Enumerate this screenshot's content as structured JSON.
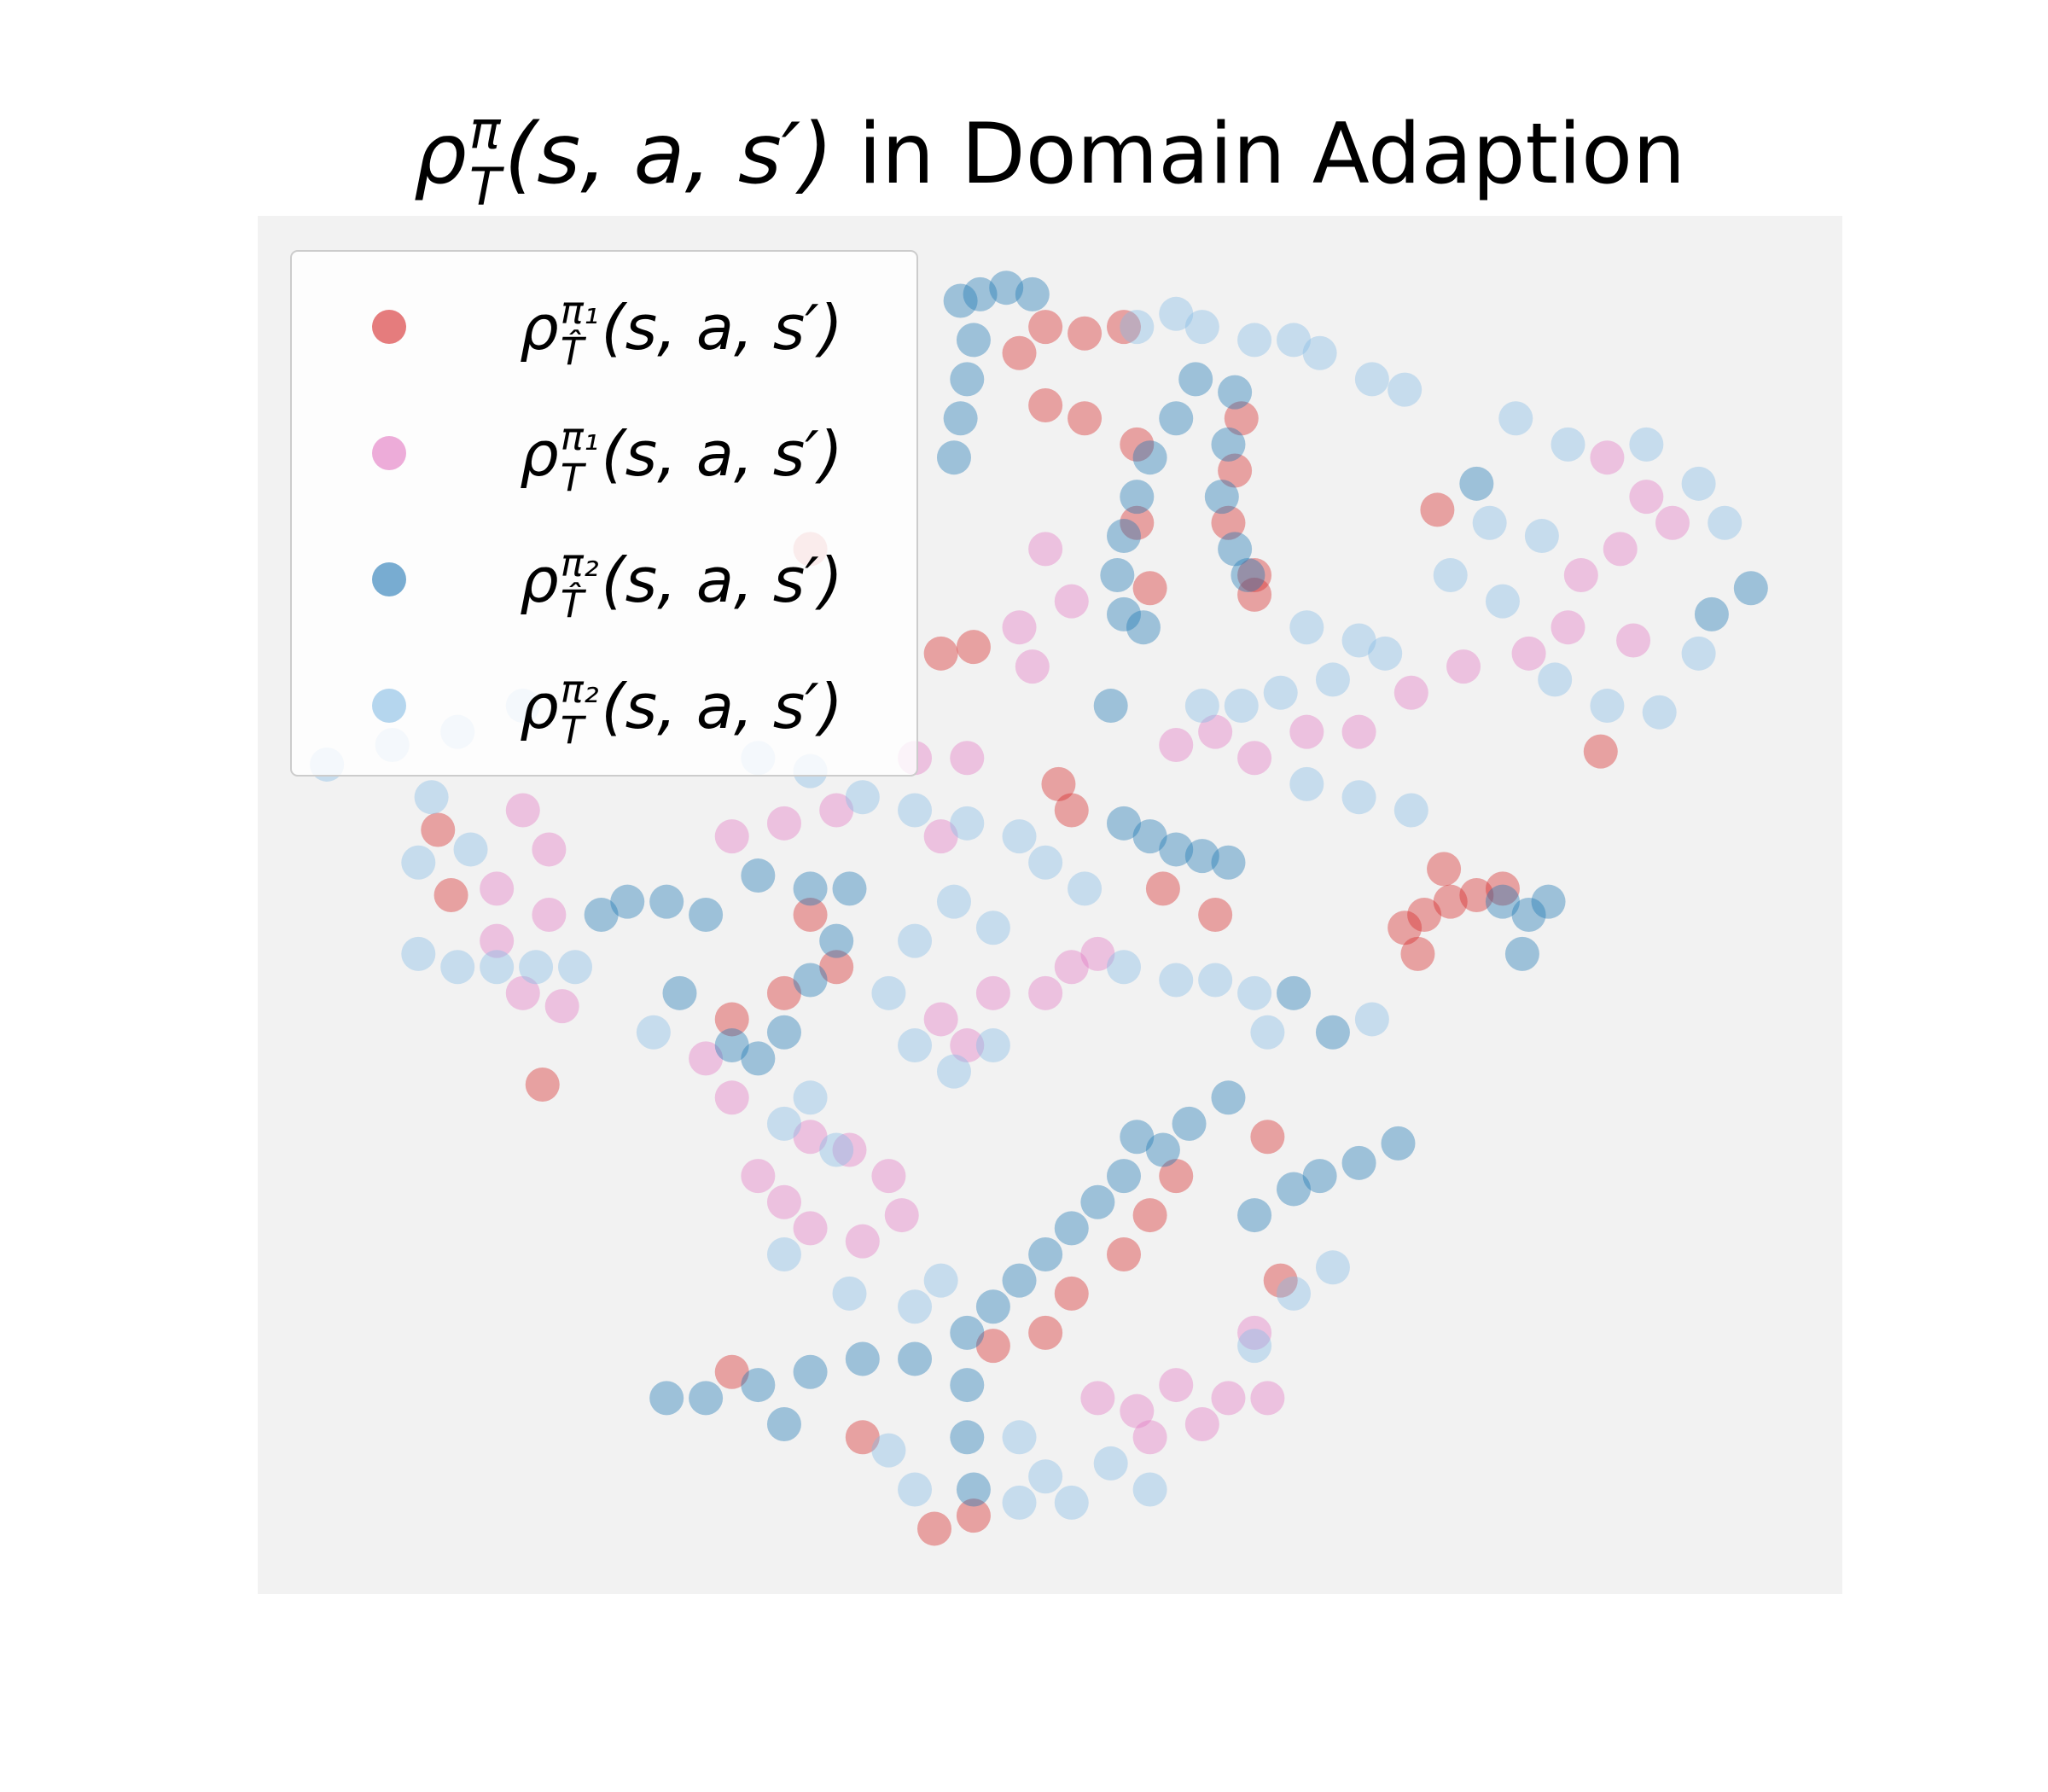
{
  "chart_data": {
    "type": "scatter",
    "title": {
      "symbol": "ρ",
      "sup": "π",
      "sub": "T",
      "args": "(s, a, s′)",
      "text": "in Domain Adaption"
    },
    "xlim": [
      -3,
      1210
    ],
    "ylim": [
      0,
      1055
    ],
    "legend": "upper left",
    "series": [
      {
        "name": {
          "symbol": "ρ",
          "sup": "π₁",
          "sub": "T̂",
          "args": "(s, a, s′)"
        },
        "color": "#d62728",
        "x": [
          600,
          630,
          660,
          580,
          600,
          630,
          670,
          670,
          680,
          750,
          745,
          740,
          760,
          760,
          610,
          620,
          520,
          545,
          420,
          875,
          890,
          910,
          930,
          950,
          885,
          905,
          215,
          135,
          145,
          690,
          730,
          900,
          1025,
          700,
          680,
          660,
          620,
          600,
          560,
          545,
          515,
          460,
          360,
          770,
          780,
          420,
          400,
          360,
          440
        ],
        "values": [
          970,
          965,
          970,
          950,
          910,
          900,
          880,
          820,
          770,
          900,
          860,
          820,
          780,
          765,
          620,
          600,
          720,
          725,
          800,
          510,
          520,
          530,
          535,
          540,
          490,
          555,
          390,
          585,
          535,
          540,
          520,
          830,
          645,
          320,
          290,
          260,
          230,
          200,
          190,
          60,
          50,
          120,
          170,
          350,
          240,
          520,
          460,
          440,
          480
        ]
      },
      {
        "name": {
          "symbol": "ρ",
          "sup": "π₁",
          "sub": "T",
          "args": "(s, a, s′)"
        },
        "color": "#e377c2",
        "x": [
          1030,
          1060,
          1040,
          1010,
          1080,
          1000,
          1050,
          970,
          920,
          880,
          840,
          800,
          760,
          730,
          700,
          600,
          620,
          580,
          590,
          500,
          540,
          440,
          400,
          360,
          520,
          200,
          220,
          180,
          220,
          180,
          200,
          230,
          620,
          640,
          600,
          560,
          520,
          540,
          420,
          450,
          480,
          490,
          460,
          420,
          400,
          380,
          360,
          340,
          640,
          670,
          700,
          740,
          770,
          680,
          720,
          760
        ],
        "values": [
          870,
          840,
          800,
          780,
          820,
          740,
          730,
          720,
          710,
          690,
          660,
          660,
          640,
          660,
          650,
          800,
          760,
          740,
          710,
          640,
          640,
          600,
          590,
          580,
          580,
          600,
          570,
          540,
          520,
          500,
          460,
          450,
          480,
          490,
          460,
          460,
          440,
          420,
          350,
          340,
          320,
          290,
          270,
          280,
          300,
          320,
          380,
          410,
          150,
          140,
          160,
          150,
          150,
          120,
          130,
          200
        ]
      },
      {
        "name": {
          "symbol": "ρ",
          "sup": "π₂",
          "sub": "T̂",
          "args": "(s, a, s′)"
        },
        "color": "#1f77b4",
        "x": [
          535,
          545,
          540,
          535,
          530,
          550,
          570,
          590,
          715,
          700,
          680,
          670,
          660,
          655,
          660,
          675,
          745,
          740,
          735,
          745,
          755,
          650,
          660,
          680,
          700,
          720,
          740,
          950,
          970,
          985,
          965,
          280,
          310,
          340,
          380,
          420,
          450,
          440,
          420,
          400,
          380,
          360,
          320,
          260,
          670,
          690,
          660,
          640,
          620,
          600,
          580,
          560,
          540,
          540,
          540,
          545,
          500,
          460,
          420,
          380,
          340,
          310,
          400,
          710,
          740,
          870,
          840,
          810,
          790,
          760,
          930,
          1140,
          1110,
          790,
          820
        ],
        "values": [
          990,
          960,
          930,
          900,
          870,
          995,
          1000,
          995,
          930,
          900,
          870,
          840,
          810,
          780,
          750,
          740,
          920,
          880,
          840,
          800,
          780,
          680,
          590,
          580,
          570,
          565,
          560,
          530,
          520,
          530,
          490,
          530,
          530,
          520,
          550,
          540,
          540,
          500,
          470,
          430,
          410,
          420,
          460,
          520,
          350,
          340,
          320,
          300,
          280,
          260,
          240,
          220,
          200,
          160,
          120,
          80,
          180,
          180,
          170,
          160,
          150,
          150,
          130,
          360,
          380,
          345,
          330,
          320,
          310,
          290,
          850,
          770,
          750,
          460,
          430
        ]
      },
      {
        "name": {
          "symbol": "ρ",
          "sup": "π₂",
          "sub": "T",
          "args": "(s, a, s′)"
        },
        "color": "#85bce5",
        "x": [
          790,
          810,
          850,
          875,
          720,
          760,
          670,
          700,
          960,
          1000,
          1060,
          1100,
          1120,
          980,
          940,
          910,
          950,
          990,
          1030,
          1070,
          1100,
          860,
          820,
          780,
          750,
          720,
          800,
          840,
          880,
          800,
          840,
          50,
          100,
          150,
          200,
          130,
          160,
          120,
          120,
          150,
          180,
          210,
          240,
          300,
          380,
          420,
          460,
          500,
          540,
          580,
          600,
          630,
          530,
          560,
          500,
          480,
          500,
          530,
          560,
          660,
          700,
          730,
          760,
          770,
          850,
          400,
          420,
          440,
          400,
          450,
          500,
          520,
          820,
          790,
          760,
          580,
          600,
          620,
          580,
          650,
          680,
          480,
          500
        ],
        "values": [
          960,
          950,
          930,
          922,
          970,
          960,
          970,
          980,
          900,
          880,
          880,
          850,
          820,
          810,
          820,
          780,
          760,
          700,
          680,
          675,
          720,
          720,
          700,
          690,
          680,
          680,
          620,
          610,
          600,
          740,
          730,
          635,
          650,
          660,
          680,
          610,
          570,
          560,
          490,
          480,
          480,
          480,
          480,
          430,
          640,
          630,
          610,
          600,
          590,
          580,
          560,
          540,
          530,
          510,
          500,
          460,
          420,
          400,
          420,
          480,
          470,
          470,
          460,
          430,
          440,
          360,
          380,
          340,
          260,
          230,
          220,
          240,
          250,
          230,
          190,
          120,
          90,
          70,
          70,
          100,
          80,
          110,
          80
        ]
      }
    ]
  }
}
